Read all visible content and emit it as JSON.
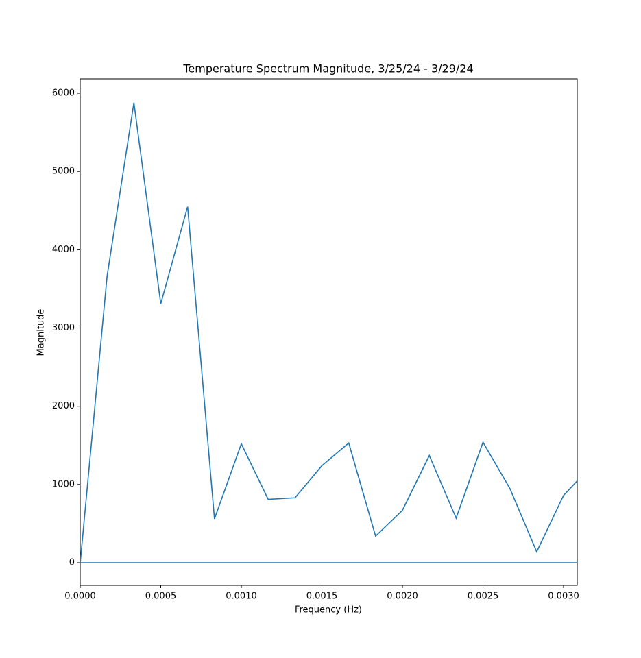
{
  "chart_data": {
    "type": "line",
    "title": "Temperature Spectrum Magnitude, 3/25/24 - 3/29/24",
    "x_label": "Frequency (Hz)",
    "y_label": "Magnitude",
    "series": [
      {
        "color": "#1f77b4",
        "x": [
          0,
          0.0001667,
          0.0003333,
          0.0005,
          0.0006667,
          0.0008333,
          0.001,
          0.0011667,
          0.0013333,
          0.0015,
          0.0016667,
          0.0018333,
          0.002,
          0.0021667,
          0.0023333,
          0.0025,
          0.0026667,
          0.0028333,
          0.003,
          0.0031667
        ],
        "values": [
          0,
          3660,
          5880,
          3310,
          4550,
          560,
          1520,
          810,
          830,
          1240,
          1530,
          340,
          670,
          1370,
          570,
          1540,
          950,
          140,
          860,
          1225
        ]
      },
      {
        "color": "#1f77b4",
        "x": [
          0,
          0.0031667
        ],
        "values": [
          0,
          0
        ]
      }
    ],
    "xlim": [
      0,
      0.003085
    ],
    "ylim": [
      -289,
      6184
    ],
    "xticks": [
      {
        "value": 0,
        "label": "0.0000"
      },
      {
        "value": 0.0005,
        "label": "0.0005"
      },
      {
        "value": 0.001,
        "label": "0.0010"
      },
      {
        "value": 0.0015,
        "label": "0.0015"
      },
      {
        "value": 0.002,
        "label": "0.0020"
      },
      {
        "value": 0.0025,
        "label": "0.0025"
      },
      {
        "value": 0.003,
        "label": "0.0030"
      }
    ],
    "yticks": [
      0,
      1000,
      2000,
      3000,
      4000,
      5000,
      6000
    ]
  }
}
